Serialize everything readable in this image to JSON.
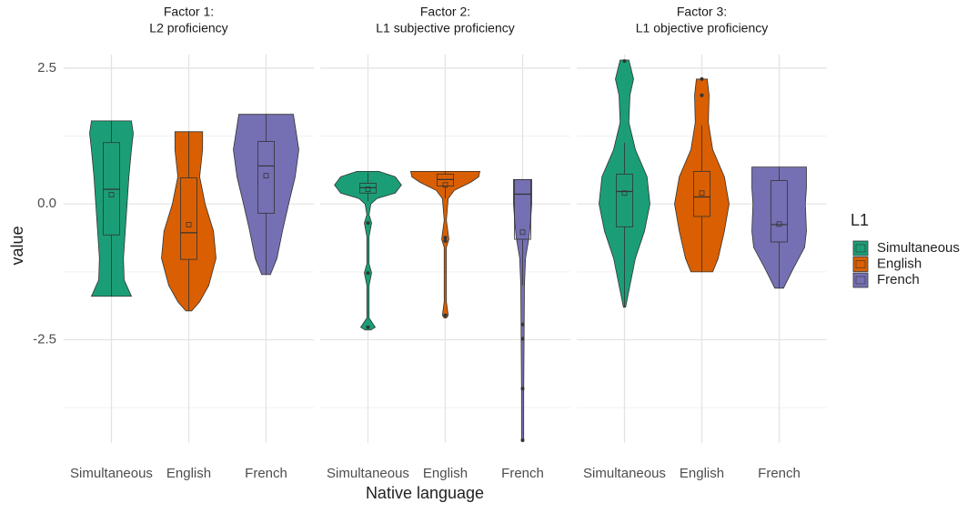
{
  "chart_data": {
    "type": "violin",
    "x_label": "Native language",
    "y_label": "value",
    "ylim": [
      -4.4,
      2.75
    ],
    "yticks": [
      2.5,
      {
        "value": 0,
        "label": "0.0"
      },
      -2.5
    ],
    "minor_yticks": [
      1.25,
      -1.25,
      -3.75
    ],
    "grid": true,
    "categories": [
      "Simultaneous",
      "English",
      "French"
    ],
    "colors": [
      "#1b9e77",
      "#d95f02",
      "#7570b3"
    ],
    "legend": {
      "title": "L1",
      "position": "right"
    },
    "facets": [
      {
        "title": [
          "Factor 1:",
          "L2 proficiency"
        ],
        "groups": [
          {
            "violin": {
              "y": [
                1.53,
                1.3,
                1.0,
                0.5,
                0,
                -0.5,
                -1.0,
                -1.4,
                -1.7
              ],
              "width": [
                0.55,
                0.6,
                0.55,
                0.48,
                0.43,
                0.38,
                0.33,
                0.35,
                0.55
              ]
            },
            "box": {
              "low": -1.7,
              "q1": -0.57,
              "median": 0.27,
              "q3": 1.13,
              "high": 1.53
            },
            "mean": 0.17,
            "outliers": []
          },
          {
            "violin": {
              "y": [
                1.33,
                1.0,
                0.5,
                0,
                -0.5,
                -1.0,
                -1.5,
                -1.8,
                -1.97
              ],
              "width": [
                0.38,
                0.38,
                0.3,
                0.45,
                0.68,
                0.75,
                0.55,
                0.3,
                0.08
              ]
            },
            "box": {
              "low": -1.97,
              "q1": -1.02,
              "median": -0.53,
              "q3": 0.48,
              "high": 1.33
            },
            "mean": -0.38,
            "outliers": []
          },
          {
            "violin": {
              "y": [
                1.65,
                1.0,
                0.5,
                0,
                -0.5,
                -1.0,
                -1.3
              ],
              "width": [
                0.75,
                0.9,
                0.8,
                0.62,
                0.45,
                0.3,
                0.12
              ]
            },
            "box": {
              "low": -1.3,
              "q1": -0.17,
              "median": 0.7,
              "q3": 1.15,
              "high": 1.65
            },
            "mean": 0.52,
            "outliers": []
          }
        ]
      },
      {
        "title": [
          "Factor 2:",
          "L1 subjective proficiency"
        ],
        "groups": [
          {
            "violin": {
              "y": [
                0.6,
                0.5,
                0.35,
                0.2,
                0.1,
                0,
                -0.2,
                -0.35,
                -0.6,
                -1.1,
                -1.27,
                -1.5,
                -2.1,
                -2.27,
                -2.32
              ],
              "width": [
                0.3,
                0.75,
                0.92,
                0.75,
                0.25,
                0.08,
                0.03,
                0.1,
                0.03,
                0.03,
                0.1,
                0.03,
                0.03,
                0.2,
                0.08
              ]
            },
            "box": {
              "low": 0.05,
              "q1": 0.2,
              "median": 0.3,
              "q3": 0.38,
              "high": 0.58
            },
            "mean": 0.27,
            "outliers": [
              -0.35,
              -1.27,
              -2.27
            ]
          },
          {
            "violin": {
              "y": [
                0.6,
                0.5,
                0.4,
                0.25,
                0.1,
                -0.3,
                -0.65,
                -0.8,
                -1.8,
                -2.05,
                -2.1
              ],
              "width": [
                0.95,
                0.92,
                0.7,
                0.25,
                0.08,
                0.03,
                0.1,
                0.03,
                0.03,
                0.08,
                0.03
              ]
            },
            "box": {
              "low": 0.1,
              "q1": 0.33,
              "median": 0.45,
              "q3": 0.55,
              "high": 0.6
            },
            "mean": 0.35,
            "outliers": [
              -0.62,
              -0.68,
              -2.05
            ]
          },
          {
            "violin": {
              "y": [
                0.45,
                0.2,
                0,
                -0.3,
                -0.6,
                -1.0,
                -1.5,
                -2.5,
                -3.5,
                -4.35
              ],
              "width": [
                0.25,
                0.25,
                0.25,
                0.22,
                0.18,
                0.08,
                0.05,
                0.04,
                0.03,
                0.03
              ]
            },
            "box": {
              "low": -1.5,
              "q1": -0.65,
              "median": 0.18,
              "q3": 0.45,
              "high": 0.45
            },
            "mean": -0.52,
            "outliers": [
              -2.22,
              -2.48,
              -3.4,
              -4.35
            ]
          }
        ]
      },
      {
        "title": [
          "Factor 3:",
          "L1 objective proficiency"
        ],
        "groups": [
          {
            "violin": {
              "y": [
                2.65,
                2.3,
                2.0,
                1.5,
                1.0,
                0.5,
                0,
                -0.5,
                -1.0,
                -1.5,
                -1.9
              ],
              "width": [
                0.12,
                0.25,
                0.15,
                0.12,
                0.3,
                0.62,
                0.7,
                0.55,
                0.3,
                0.15,
                0.03
              ]
            },
            "box": {
              "low": -1.9,
              "q1": -0.42,
              "median": 0.23,
              "q3": 0.55,
              "high": 1.13
            },
            "mean": 0.2,
            "outliers": [
              2.63
            ]
          },
          {
            "violin": {
              "y": [
                2.3,
                2.0,
                1.5,
                1.0,
                0.5,
                0,
                -0.5,
                -1.0,
                -1.25
              ],
              "width": [
                0.15,
                0.2,
                0.18,
                0.3,
                0.62,
                0.75,
                0.62,
                0.45,
                0.3
              ]
            },
            "box": {
              "low": -1.25,
              "q1": -0.23,
              "median": 0.13,
              "q3": 0.6,
              "high": 1.45
            },
            "mean": 0.2,
            "outliers": [
              2.3,
              2.0
            ]
          },
          {
            "violin": {
              "y": [
                0.68,
                0.3,
                0,
                -0.5,
                -0.8,
                -1.2,
                -1.55
              ],
              "width": [
                0.75,
                0.75,
                0.72,
                0.75,
                0.7,
                0.38,
                0.12
              ]
            },
            "box": {
              "low": -1.55,
              "q1": -0.7,
              "median": -0.38,
              "q3": 0.43,
              "high": 0.68
            },
            "mean": -0.37,
            "outliers": []
          }
        ]
      }
    ]
  }
}
